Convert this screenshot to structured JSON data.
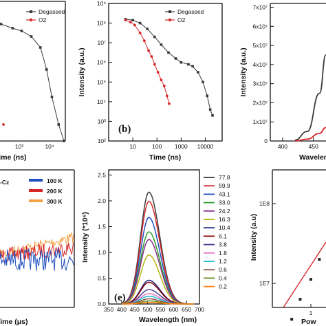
{
  "colors": {
    "degassed": "#3a3a3a",
    "o2": "#d62728"
  },
  "panel_labels": {
    "b": "(b)",
    "e": "(e)"
  },
  "chart_data": [
    {
      "id": "a",
      "type": "scatter",
      "xlabel": "Time (ns)",
      "xscale": "log",
      "xticks": [
        "10³",
        "10⁴"
      ],
      "legend": [
        "Degassed",
        "O2"
      ],
      "series": [
        {
          "name": "Degassed",
          "x": [
            4,
            10,
            30,
            100,
            250,
            600,
            1200,
            2500,
            5000,
            8000,
            12000,
            20000,
            30000
          ],
          "y": [
            6.5,
            6.45,
            6.4,
            6.35,
            6.25,
            6.1,
            6.0,
            5.8,
            5.4,
            4.6,
            3.6,
            2.6,
            2.0
          ]
        },
        {
          "name": "O2",
          "x": [
            5,
            10,
            20,
            40,
            80,
            150,
            300
          ],
          "y": [
            4.7,
            4.3,
            4.0,
            3.6,
            3.2,
            2.9,
            2.6
          ]
        }
      ]
    },
    {
      "id": "b",
      "type": "scatter",
      "xlabel": "Time (ns)",
      "ylabel": "Intensity (a.u.)",
      "xscale": "log",
      "yscale": "log",
      "xticks": [
        "10",
        "100",
        "1000",
        "10000"
      ],
      "yticks": [
        "10²",
        "10³",
        "10⁴",
        "10⁵",
        "10⁶",
        "10⁷",
        "10⁸",
        "10⁹"
      ],
      "xlim": [
        1,
        50000
      ],
      "ylim": [
        2,
        9
      ],
      "legend": [
        "Degassed",
        "O2"
      ],
      "series": [
        {
          "name": "Degassed",
          "x": [
            5,
            10,
            20,
            40,
            80,
            150,
            300,
            600,
            1000,
            2000,
            3000,
            5000,
            8000,
            12000,
            16000,
            20000
          ],
          "y": [
            8.2,
            8.15,
            8.0,
            7.7,
            7.3,
            6.9,
            6.5,
            6.2,
            6.0,
            5.9,
            5.8,
            5.5,
            5.0,
            4.3,
            3.6,
            3.3
          ]
        },
        {
          "name": "O2",
          "x": [
            5,
            8,
            12,
            20,
            30,
            45,
            60,
            80,
            110,
            150,
            200,
            260,
            320
          ],
          "y": [
            8.15,
            8.05,
            7.9,
            7.5,
            7.1,
            6.6,
            6.3,
            5.9,
            5.5,
            5.1,
            4.8,
            4.3,
            3.9
          ]
        }
      ]
    },
    {
      "id": "c",
      "type": "line",
      "xlabel": "Wavelen",
      "ylabel": "Intensity (a.u.)",
      "xticks": [
        "400",
        "450",
        "500"
      ],
      "yticks": [
        "0",
        "1x10⁷",
        "2x10⁷",
        "3x10⁷",
        "4x10⁷",
        "5x10⁷",
        "6x10⁷",
        "7x10⁷"
      ],
      "xlim": [
        380,
        525
      ],
      "ylim": [
        0,
        7.2
      ],
      "series": [
        {
          "name": "",
          "x": [
            420,
            440,
            460,
            470,
            480,
            490,
            500,
            510,
            520
          ],
          "y": [
            0.05,
            0.5,
            2.5,
            4.5,
            5.8,
            6.4,
            6.65,
            6.6,
            6.3
          ]
        },
        {
          "name": "",
          "x": [
            420,
            440,
            460,
            470,
            480,
            490,
            500,
            510,
            520
          ],
          "y": [
            0,
            0.1,
            0.4,
            0.7,
            1.0,
            1.15,
            1.2,
            1.2,
            1.15
          ]
        }
      ]
    },
    {
      "id": "d",
      "type": "line",
      "xlabel": "Time (μs)",
      "legend_title": "-Cz",
      "legend": [
        "100 K",
        "200 K",
        "300 K"
      ],
      "colors": [
        "#1f4fbf",
        "#d62728",
        "#f5a142"
      ]
    },
    {
      "id": "e",
      "type": "line",
      "xlabel": "Wavelength (nm)",
      "ylabel": "Intensity (*10⁶)",
      "xticks": [
        "350",
        "400",
        "450",
        "500",
        "550",
        "600",
        "650",
        "700"
      ],
      "yticks": [
        "0.0",
        "0.5",
        "1.0",
        "1.5",
        "2.0",
        "2.5"
      ],
      "xlim": [
        350,
        700
      ],
      "ylim": [
        0,
        2.6
      ],
      "peak": 505,
      "series": [
        {
          "name": "77.8",
          "color": "#3b3b3b",
          "peak": 2.17
        },
        {
          "name": "59.9",
          "color": "#d62728",
          "peak": 1.99
        },
        {
          "name": "43.1",
          "color": "#1f4fbf",
          "peak": 1.68
        },
        {
          "name": "33.0",
          "color": "#2ca02c",
          "peak": 1.4
        },
        {
          "name": "24.2",
          "color": "#8c2d8c",
          "peak": 1.25
        },
        {
          "name": "16.3",
          "color": "#b5b513",
          "peak": 0.95
        },
        {
          "name": "10.4",
          "color": "#1a237e",
          "peak": 0.46
        },
        {
          "name": "6.1",
          "color": "#8b0000",
          "peak": 0.42
        },
        {
          "name": "3.8",
          "color": "#4b3b8f",
          "peak": 0.28
        },
        {
          "name": "1.8",
          "color": "#e377c2",
          "peak": 0.2
        },
        {
          "name": "1.2",
          "color": "#17becf",
          "peak": 0.15
        },
        {
          "name": "0.6",
          "color": "#8c564b",
          "peak": 0.1
        },
        {
          "name": "0.4",
          "color": "#6b8e23",
          "peak": 0.06
        },
        {
          "name": "0.2",
          "color": "#ff7f0e",
          "peak": 0.03
        }
      ]
    },
    {
      "id": "f",
      "type": "scatter",
      "xlabel": "Pow",
      "ylabel": "Intensity (a.u)",
      "yscale": "log",
      "yticks": [
        "1E7",
        "1E8"
      ],
      "xticks": [
        "1"
      ],
      "series": [
        {
          "name": "",
          "x": [
            0.4,
            0.6,
            1.0,
            1.5
          ],
          "y": [
            6.55,
            6.8,
            7.05,
            7.3
          ]
        }
      ]
    }
  ]
}
